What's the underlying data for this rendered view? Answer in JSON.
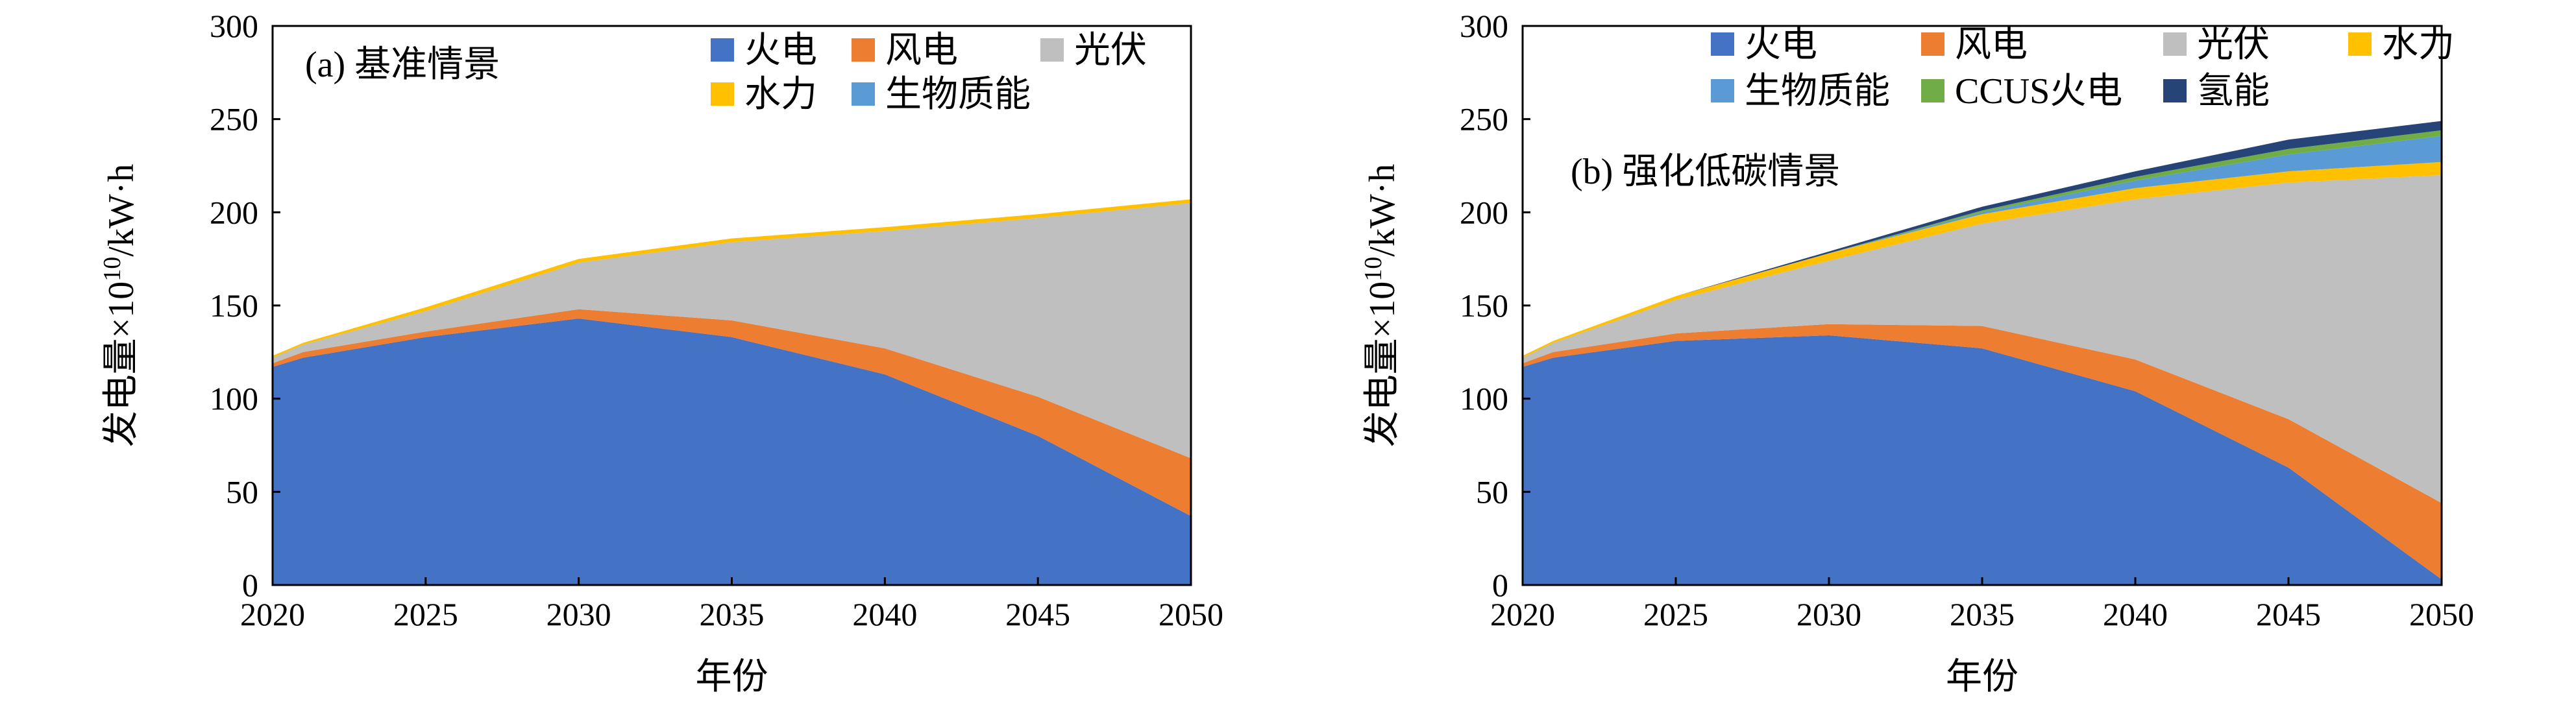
{
  "chart_data": [
    {
      "type": "area",
      "stacked": true,
      "panel_label": "(a) 基准情景",
      "xlabel": "年份",
      "ylabel": "发电量×10",
      "ylabel_sup": "10",
      "ylabel_unit": "/kW·h",
      "xlim": [
        2020,
        2050
      ],
      "ylim": [
        0,
        300
      ],
      "xticks": [
        "2020",
        "2025",
        "2030",
        "2035",
        "2040",
        "2045",
        "2050"
      ],
      "yticks": [
        "0",
        "50",
        "100",
        "150",
        "200",
        "250",
        "300"
      ],
      "grid": false,
      "legend_position": "top-right",
      "x": [
        2020,
        2021,
        2025,
        2030,
        2035,
        2040,
        2045,
        2050
      ],
      "series": [
        {
          "name": "火电",
          "color": "#4472C4",
          "values": [
            117,
            122,
            133,
            143,
            133,
            113,
            80,
            37
          ]
        },
        {
          "name": "风电",
          "color": "#ED7D31",
          "values": [
            2,
            3,
            3,
            5,
            9,
            14,
            21,
            31
          ]
        },
        {
          "name": "光伏",
          "color": "#BFBFBF",
          "values": [
            3,
            4,
            11,
            25,
            42,
            63,
            96,
            137
          ]
        },
        {
          "name": "水力",
          "color": "#FFC000",
          "values": [
            1,
            1,
            2,
            2,
            2,
            2,
            2,
            2
          ]
        },
        {
          "name": "生物质能",
          "color": "#5B9BD5",
          "values": [
            0,
            0,
            0,
            0,
            0,
            0,
            0,
            0
          ]
        }
      ]
    },
    {
      "type": "area",
      "stacked": true,
      "panel_label": "(b) 强化低碳情景",
      "xlabel": "年份",
      "ylabel": "发电量×10",
      "ylabel_sup": "10",
      "ylabel_unit": "/kW·h",
      "xlim": [
        2020,
        2050
      ],
      "ylim": [
        0,
        300
      ],
      "xticks": [
        "2020",
        "2025",
        "2030",
        "2035",
        "2040",
        "2045",
        "2050"
      ],
      "yticks": [
        "0",
        "50",
        "100",
        "150",
        "200",
        "250",
        "300"
      ],
      "grid": false,
      "legend_position": "top",
      "x": [
        2020,
        2021,
        2025,
        2030,
        2035,
        2040,
        2045,
        2050
      ],
      "series": [
        {
          "name": "火电",
          "color": "#4472C4",
          "values": [
            117,
            122,
            131,
            134,
            127,
            104,
            63,
            3
          ]
        },
        {
          "name": "风电",
          "color": "#ED7D31",
          "values": [
            2,
            3,
            4,
            6,
            12,
            17,
            26,
            41
          ]
        },
        {
          "name": "光伏",
          "color": "#BFBFBF",
          "values": [
            3,
            5,
            18,
            34,
            55,
            86,
            127,
            176
          ]
        },
        {
          "name": "水力",
          "color": "#FFC000",
          "values": [
            1,
            1,
            2,
            4,
            5,
            6,
            6,
            7
          ]
        },
        {
          "name": "生物质能",
          "color": "#5B9BD5",
          "values": [
            0,
            0,
            0,
            0,
            1,
            4,
            9,
            14
          ]
        },
        {
          "name": "CCUS火电",
          "color": "#70AD47",
          "values": [
            0,
            0,
            0,
            0,
            1,
            2,
            3,
            3
          ]
        },
        {
          "name": "氢能",
          "color": "#264478",
          "values": [
            0,
            0,
            0,
            1,
            2,
            3,
            5,
            5
          ]
        }
      ]
    }
  ]
}
